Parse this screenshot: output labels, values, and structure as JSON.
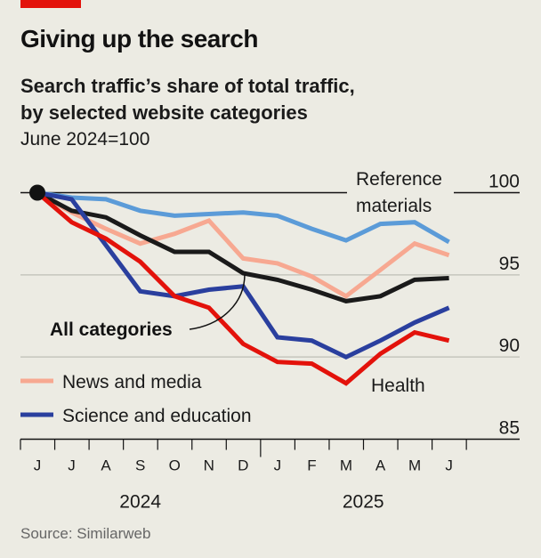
{
  "header": {
    "title": "Giving up the search",
    "subtitle_line1": "Search traffic’s share of total traffic,",
    "subtitle_line2": "by selected website categories",
    "unit": "June 2024=100"
  },
  "source": "Source: Similarweb",
  "colors": {
    "accent_bar": "#e3120b",
    "reference": "#5b9bd8",
    "news": "#f7a891",
    "all": "#1a1a1a",
    "science": "#2a3f9e",
    "health": "#e3120b"
  },
  "chart_data": {
    "type": "line",
    "title": "Giving up the search",
    "subtitle": "Search traffic’s share of total traffic, by selected website categories",
    "ylabel": "June 2024=100",
    "xlabel": "",
    "categories": [
      "J",
      "J",
      "A",
      "S",
      "O",
      "N",
      "D",
      "J",
      "F",
      "M",
      "A",
      "M",
      "J"
    ],
    "x": [
      "Jun 2024",
      "Jul 2024",
      "Aug 2024",
      "Sep 2024",
      "Oct 2024",
      "Nov 2024",
      "Dec 2024",
      "Jan 2025",
      "Feb 2025",
      "Mar 2025",
      "Apr 2025",
      "May 2025",
      "Jun 2025"
    ],
    "year_labels": [
      {
        "label": "2024",
        "span": [
          0,
          6
        ]
      },
      {
        "label": "2025",
        "span": [
          7,
          12
        ]
      }
    ],
    "ylim": [
      85,
      100
    ],
    "yticks": [
      100,
      95,
      90,
      85
    ],
    "grid": true,
    "series": [
      {
        "key": "reference",
        "name": "Reference materials",
        "values": [
          100,
          99.7,
          99.6,
          98.9,
          98.6,
          98.7,
          98.8,
          98.6,
          97.8,
          97.1,
          98.1,
          98.2,
          97.0
        ]
      },
      {
        "key": "news",
        "name": "News and media",
        "values": [
          100,
          98.8,
          97.8,
          96.9,
          97.5,
          98.3,
          96.0,
          95.7,
          94.9,
          93.7,
          95.3,
          96.9,
          96.2
        ]
      },
      {
        "key": "all",
        "name": "All categories",
        "values": [
          100,
          98.9,
          98.5,
          97.4,
          96.4,
          96.4,
          95.1,
          94.7,
          94.1,
          93.4,
          93.7,
          94.7,
          94.8
        ]
      },
      {
        "key": "science",
        "name": "Science and education",
        "values": [
          100,
          99.6,
          96.8,
          94.0,
          93.7,
          94.1,
          94.3,
          91.2,
          91.0,
          90.0,
          91.0,
          92.1,
          93.0
        ]
      },
      {
        "key": "health",
        "name": "Health",
        "values": [
          100,
          98.2,
          97.2,
          95.8,
          93.7,
          93.0,
          90.8,
          89.7,
          89.6,
          88.4,
          90.2,
          91.5,
          91.0
        ]
      }
    ],
    "annotations": {
      "reference_line1": "Reference",
      "reference_line2": "materials",
      "all": "All categories",
      "health": "Health"
    },
    "legend": [
      {
        "key": "news",
        "label": "News and media"
      },
      {
        "key": "science",
        "label": "Science and education"
      }
    ],
    "legend_placement": "bottom-left"
  }
}
